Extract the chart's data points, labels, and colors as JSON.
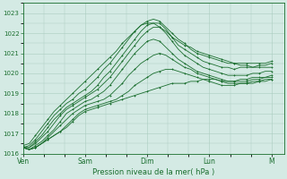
{
  "xlabel": "Pression niveau de la mer( hPa )",
  "ylim": [
    1016,
    1023.5
  ],
  "yticks": [
    1016,
    1017,
    1018,
    1019,
    1020,
    1021,
    1022,
    1023
  ],
  "day_labels": [
    "Ven",
    "Sam",
    "Dim",
    "Lun",
    "M"
  ],
  "day_x": [
    0,
    1,
    2,
    3,
    4
  ],
  "xlim": [
    0,
    4.2
  ],
  "bg_color": "#d4eae4",
  "grid_color": "#aaccc0",
  "line_color": "#1a6e2e",
  "series": [
    [
      1016.3,
      1016.2,
      1016.3,
      1016.5,
      1016.7,
      1016.9,
      1017.1,
      1017.3,
      1017.6,
      1017.9,
      1018.1,
      1018.2,
      1018.3,
      1018.4,
      1018.5,
      1018.6,
      1018.7,
      1018.8,
      1018.9,
      1019.0,
      1019.1,
      1019.2,
      1019.3,
      1019.4,
      1019.5,
      1019.5,
      1019.5,
      1019.6,
      1019.6,
      1019.7,
      1019.7,
      1019.7,
      1019.6,
      1019.6,
      1019.6,
      1019.7,
      1019.7,
      1019.8,
      1019.8,
      1019.8,
      1019.9
    ],
    [
      1016.3,
      1016.2,
      1016.3,
      1016.5,
      1016.7,
      1016.9,
      1017.1,
      1017.4,
      1017.7,
      1018.0,
      1018.2,
      1018.3,
      1018.4,
      1018.5,
      1018.6,
      1018.7,
      1018.9,
      1019.1,
      1019.4,
      1019.6,
      1019.8,
      1020.0,
      1020.1,
      1020.2,
      1020.2,
      1020.1,
      1020.0,
      1019.9,
      1019.8,
      1019.7,
      1019.6,
      1019.5,
      1019.4,
      1019.4,
      1019.4,
      1019.5,
      1019.5,
      1019.6,
      1019.6,
      1019.7,
      1019.7
    ],
    [
      1016.3,
      1016.2,
      1016.3,
      1016.5,
      1016.8,
      1017.1,
      1017.4,
      1017.7,
      1018.0,
      1018.2,
      1018.4,
      1018.5,
      1018.6,
      1018.7,
      1018.9,
      1019.2,
      1019.5,
      1019.9,
      1020.2,
      1020.5,
      1020.7,
      1020.9,
      1021.0,
      1020.9,
      1020.7,
      1020.5,
      1020.3,
      1020.2,
      1020.0,
      1019.9,
      1019.8,
      1019.7,
      1019.6,
      1019.5,
      1019.5,
      1019.5,
      1019.5,
      1019.5,
      1019.6,
      1019.6,
      1019.7
    ],
    [
      1016.3,
      1016.2,
      1016.4,
      1016.6,
      1016.9,
      1017.2,
      1017.6,
      1018.0,
      1018.2,
      1018.4,
      1018.6,
      1018.7,
      1018.9,
      1019.1,
      1019.4,
      1019.8,
      1020.2,
      1020.6,
      1021.0,
      1021.3,
      1021.6,
      1021.7,
      1021.6,
      1021.3,
      1021.0,
      1020.7,
      1020.5,
      1020.3,
      1020.1,
      1020.0,
      1019.9,
      1019.8,
      1019.7,
      1019.6,
      1019.6,
      1019.6,
      1019.6,
      1019.7,
      1019.7,
      1019.8,
      1019.8
    ],
    [
      1016.3,
      1016.3,
      1016.5,
      1016.8,
      1017.1,
      1017.5,
      1017.9,
      1018.2,
      1018.4,
      1018.6,
      1018.8,
      1019.0,
      1019.2,
      1019.5,
      1019.8,
      1020.2,
      1020.6,
      1021.0,
      1021.4,
      1021.8,
      1022.1,
      1022.3,
      1022.3,
      1022.0,
      1021.6,
      1021.2,
      1020.9,
      1020.7,
      1020.5,
      1020.3,
      1020.2,
      1020.1,
      1020.0,
      1019.9,
      1019.9,
      1019.9,
      1019.9,
      1020.0,
      1020.0,
      1020.1,
      1020.1
    ],
    [
      1016.3,
      1016.3,
      1016.6,
      1016.9,
      1017.3,
      1017.7,
      1018.0,
      1018.3,
      1018.5,
      1018.7,
      1018.9,
      1019.1,
      1019.4,
      1019.8,
      1020.1,
      1020.5,
      1020.9,
      1021.3,
      1021.7,
      1022.1,
      1022.4,
      1022.5,
      1022.5,
      1022.2,
      1021.8,
      1021.4,
      1021.2,
      1021.0,
      1020.8,
      1020.6,
      1020.5,
      1020.4,
      1020.3,
      1020.3,
      1020.2,
      1020.3,
      1020.3,
      1020.3,
      1020.4,
      1020.4,
      1020.5
    ],
    [
      1016.3,
      1016.4,
      1016.7,
      1017.1,
      1017.5,
      1017.9,
      1018.2,
      1018.5,
      1018.7,
      1019.0,
      1019.2,
      1019.5,
      1019.8,
      1020.2,
      1020.5,
      1020.9,
      1021.3,
      1021.7,
      1022.1,
      1022.4,
      1022.6,
      1022.7,
      1022.6,
      1022.3,
      1022.0,
      1021.7,
      1021.5,
      1021.2,
      1021.0,
      1020.9,
      1020.8,
      1020.7,
      1020.6,
      1020.5,
      1020.5,
      1020.5,
      1020.5,
      1020.5,
      1020.5,
      1020.5,
      1020.6
    ],
    [
      1016.4,
      1016.5,
      1016.9,
      1017.3,
      1017.7,
      1018.1,
      1018.4,
      1018.7,
      1019.0,
      1019.3,
      1019.6,
      1019.9,
      1020.2,
      1020.5,
      1020.8,
      1021.1,
      1021.5,
      1021.8,
      1022.1,
      1022.4,
      1022.5,
      1022.5,
      1022.3,
      1022.1,
      1021.8,
      1021.6,
      1021.4,
      1021.3,
      1021.1,
      1021.0,
      1020.9,
      1020.8,
      1020.7,
      1020.6,
      1020.5,
      1020.4,
      1020.4,
      1020.3,
      1020.3,
      1020.3,
      1020.3
    ]
  ],
  "n_points": 41
}
